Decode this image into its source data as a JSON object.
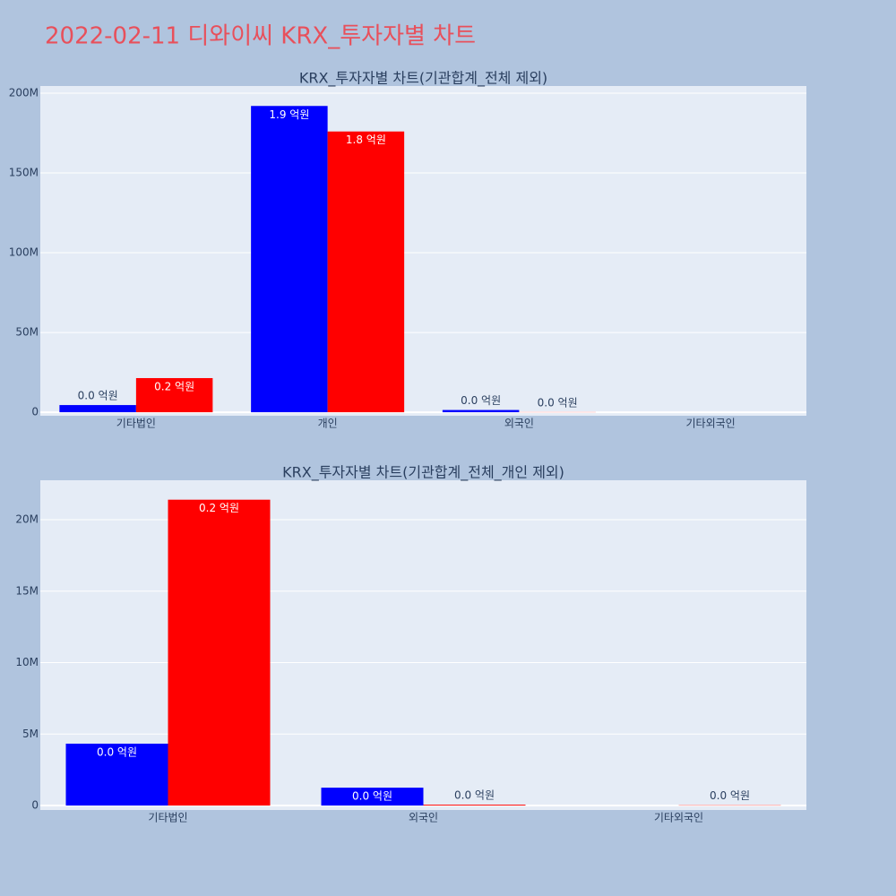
{
  "title": "2022-02-11 디와이씨 KRX_투자자별 차트",
  "chart_data": [
    {
      "type": "bar",
      "title": "KRX_투자자별 차트(기관합계_전체 제외)",
      "categories": [
        "기타법인",
        "개인",
        "외국인",
        "기타외국인"
      ],
      "series": [
        {
          "color": "#0000ff",
          "values": [
            4500000,
            192000000,
            1400000,
            null
          ],
          "value_labels": [
            "0.0 억원",
            "1.9 억원",
            "0.0 억원",
            null
          ]
        },
        {
          "color": "#ff0000",
          "values": [
            21400000,
            176000000,
            100000,
            null
          ],
          "value_labels": [
            "0.2 억원",
            "1.8 억원",
            "0.0 억원",
            null
          ]
        }
      ],
      "ylim": [
        -2200000,
        204500000
      ],
      "yticks": [
        0,
        {
          "value": 50000000,
          "label": "50M"
        },
        {
          "value": 100000000,
          "label": "100M"
        },
        {
          "value": 150000000,
          "label": "150M"
        },
        {
          "value": 200000000,
          "label": "200M"
        }
      ],
      "grid": true
    },
    {
      "type": "bar",
      "title": "KRX_투자자별 차트(기관합계_전체_개인 제외)",
      "categories": [
        "기타법인",
        "외국인",
        "기타외국인"
      ],
      "series": [
        {
          "color": "#0000ff",
          "values": [
            4330000,
            1250000,
            null
          ],
          "value_labels": [
            "0.0 억원",
            "0.0 억원",
            null
          ]
        },
        {
          "color": "#ff0000",
          "values": [
            21400000,
            60000,
            20000
          ],
          "value_labels": [
            "0.2 억원",
            "0.0 억원",
            "0.0 억원"
          ]
        }
      ],
      "ylim": [
        -310000,
        22760000
      ],
      "yticks": [
        0,
        {
          "value": 5000000,
          "label": "5M"
        },
        {
          "value": 10000000,
          "label": "10M"
        },
        {
          "value": 15000000,
          "label": "15M"
        },
        {
          "value": 20000000,
          "label": "20M"
        }
      ],
      "grid": true
    }
  ]
}
